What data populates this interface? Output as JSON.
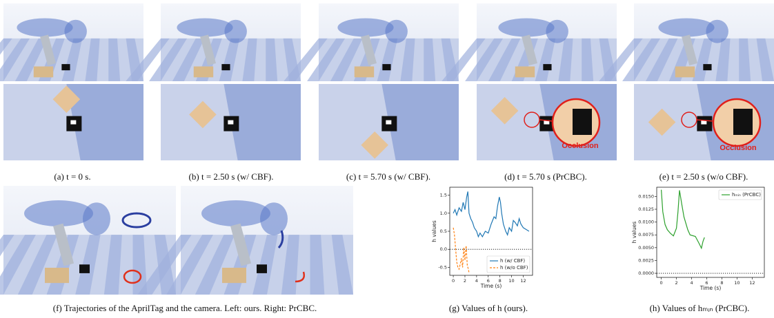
{
  "figure": {
    "panels": [
      {
        "caption": "(a) t = 0 s."
      },
      {
        "caption": "(b) t = 2.50 s (w/ CBF)."
      },
      {
        "caption": "(c) t = 5.70 s (w/ CBF)."
      },
      {
        "caption": "(d) t = 5.70 s (PrCBC).",
        "annotation": "Occlusion"
      },
      {
        "caption": "(e) t = 2.50 s (w/o CBF).",
        "annotation": "Occlusion"
      }
    ],
    "trajectories_caption": "(f) Trajectories of the AprilTag and the camera. Left: ours. Right: PrCBC.",
    "chart_captions": [
      "(g) Values of h (ours).",
      "(h) Values of hₘᵢₙ (PrCBC)."
    ]
  },
  "chart_data": [
    {
      "type": "line",
      "ylabel": "h values",
      "xlabel": "Time (s)",
      "xlim": [
        -0.6,
        13.6
      ],
      "xticks": [
        0,
        2,
        4,
        6,
        8,
        10,
        12
      ],
      "ylim": [
        -0.72,
        1.72
      ],
      "yticks": [
        -0.5,
        {
          "value": 0,
          "label": "0.0"
        },
        0.5,
        {
          "value": 1,
          "label": "1.0"
        },
        1.5
      ],
      "hline": 0,
      "legend": "lower right",
      "series": [
        {
          "name": "h (w/ CBF)",
          "color": "#1f77b4",
          "dash": false,
          "x": [
            0,
            0.3,
            0.6,
            1,
            1.4,
            1.7,
            2,
            2.3,
            2.5,
            2.7,
            3,
            3.3,
            3.6,
            4,
            4.3,
            4.6,
            5,
            5.5,
            6,
            6.5,
            7,
            7.3,
            7.6,
            7.9,
            8.1,
            8.3,
            8.6,
            9,
            9.3,
            9.6,
            10,
            10.3,
            10.6,
            11,
            11.3,
            11.6,
            12,
            12.5,
            13
          ],
          "values": [
            1.0,
            1.1,
            0.95,
            1.15,
            1.05,
            1.3,
            1.1,
            1.45,
            1.6,
            1.0,
            0.85,
            0.75,
            0.6,
            0.5,
            0.35,
            0.45,
            0.35,
            0.5,
            0.45,
            0.7,
            0.9,
            0.85,
            1.2,
            1.45,
            1.3,
            1.0,
            0.7,
            0.5,
            0.4,
            0.6,
            0.5,
            0.8,
            0.75,
            0.65,
            0.85,
            0.7,
            0.6,
            0.55,
            0.5
          ]
        },
        {
          "name": "h (w/o CBF)",
          "color": "#ff7f0e",
          "dash": true,
          "x": [
            0,
            0.2,
            0.4,
            0.6,
            0.8,
            1.0,
            1.2,
            1.4,
            1.6,
            1.8,
            2.0,
            2.2,
            2.4,
            2.6,
            2.7
          ],
          "values": [
            0.6,
            0.4,
            0.0,
            -0.35,
            -0.5,
            -0.55,
            -0.4,
            -0.25,
            -0.5,
            0.05,
            -0.3,
            0.1,
            -0.45,
            -0.55,
            -0.65
          ]
        }
      ]
    },
    {
      "type": "line",
      "ylabel": "h values",
      "xlabel": "Time (s)",
      "xlim": [
        -0.6,
        13.6
      ],
      "xticks": [
        0,
        2,
        4,
        6,
        8,
        10,
        12
      ],
      "ylim": [
        -0.0008,
        0.0168
      ],
      "yticks": [
        {
          "value": 0,
          "label": "0.0000"
        },
        {
          "value": 0.0025,
          "label": "0.0025"
        },
        {
          "value": 0.005,
          "label": "0.0050"
        },
        {
          "value": 0.0075,
          "label": "0.0075"
        },
        {
          "value": 0.01,
          "label": "0.0100"
        },
        {
          "value": 0.0125,
          "label": "0.0125"
        },
        {
          "value": 0.015,
          "label": "0.0150"
        }
      ],
      "hline": 0,
      "legend": "upper right",
      "series": [
        {
          "name": "hₘᵢₙ (PrCBC)",
          "color": "#2ca02c",
          "dash": false,
          "x": [
            0,
            0.2,
            0.5,
            0.8,
            1.2,
            1.6,
            2.0,
            2.2,
            2.4,
            2.7,
            3.0,
            3.5,
            3.8,
            4.5,
            5.0,
            5.3,
            5.5,
            5.7
          ],
          "values": [
            0.0163,
            0.012,
            0.0095,
            0.0085,
            0.0078,
            0.0073,
            0.0088,
            0.012,
            0.0162,
            0.0135,
            0.011,
            0.0085,
            0.0075,
            0.0072,
            0.0058,
            0.0049,
            0.0062,
            0.007
          ]
        }
      ]
    }
  ]
}
